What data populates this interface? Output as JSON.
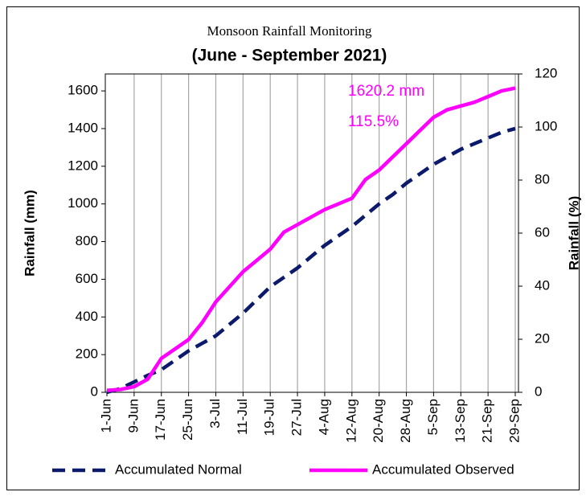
{
  "chart_data": {
    "type": "line",
    "title": "Monsoon Rainfall Monitoring",
    "subtitle": "(June - September 2021)",
    "y_label": "Rainfall (mm)",
    "y2_label": "Rainfall (%)",
    "categories": [
      "1-Jun",
      null,
      "9-Jun",
      null,
      "17-Jun",
      null,
      "25-Jun",
      null,
      "3-Jul",
      null,
      "11-Jul",
      null,
      "19-Jul",
      null,
      "27-Jul",
      null,
      "4-Aug",
      null,
      "12-Aug",
      null,
      "20-Aug",
      null,
      "28-Aug",
      null,
      "5-Sep",
      null,
      "13-Sep",
      null,
      "21-Sep",
      null,
      "29-Sep"
    ],
    "series": [
      {
        "name": "Accumulated Normal",
        "color": "#0b1a6b",
        "dash": true,
        "values": [
          0,
          20,
          55,
          90,
          120,
          170,
          220,
          260,
          300,
          360,
          420,
          490,
          560,
          610,
          660,
          720,
          780,
          830,
          880,
          940,
          1000,
          1050,
          1110,
          1160,
          1210,
          1250,
          1290,
          1320,
          1350,
          1380,
          1400
        ]
      },
      {
        "name": "Accumulated Observed",
        "color": "#ff00ff",
        "dash": false,
        "values": [
          10,
          15,
          30,
          70,
          180,
          230,
          280,
          370,
          480,
          560,
          640,
          700,
          760,
          850,
          890,
          930,
          970,
          1000,
          1030,
          1130,
          1180,
          1250,
          1320,
          1390,
          1460,
          1500,
          1520,
          1540,
          1570,
          1600,
          1615
        ]
      }
    ],
    "annotations": [
      "1620.2 mm",
      "115.5%"
    ],
    "ylim": [
      0,
      1690
    ],
    "yticks": [
      0,
      200,
      400,
      600,
      800,
      1000,
      1200,
      1400,
      1600
    ],
    "y2lim": [
      0,
      120
    ],
    "y2ticks": [
      0,
      20,
      40,
      60,
      80,
      100,
      120
    ],
    "grid": true
  }
}
